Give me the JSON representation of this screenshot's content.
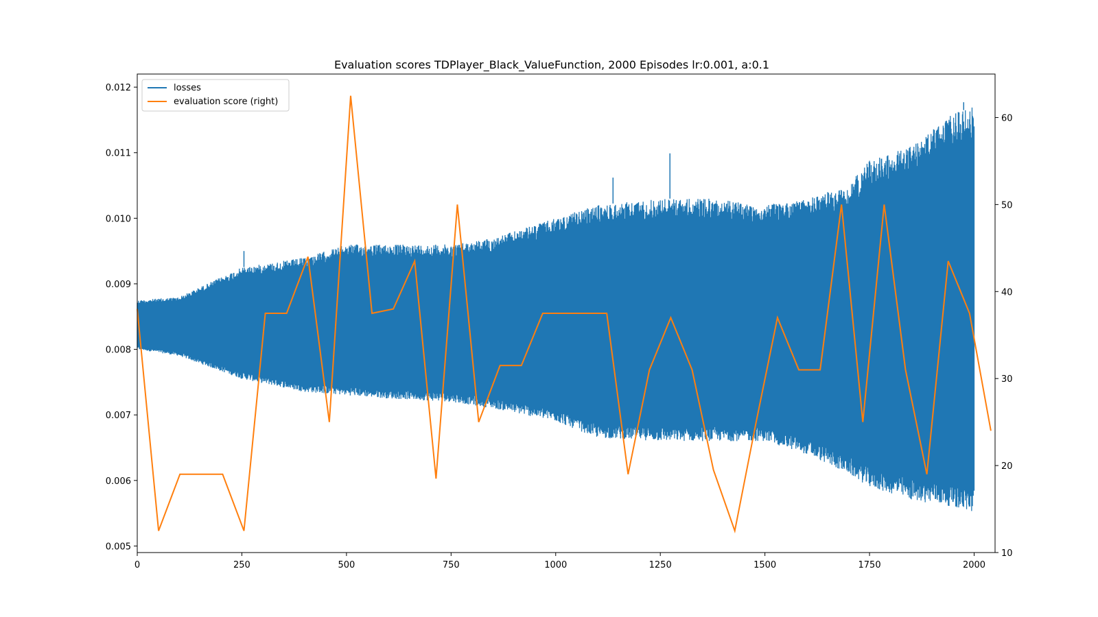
{
  "chart_data": {
    "type": "line",
    "title": "Evaluation scores TDPlayer_Black_ValueFunction, 2000 Episodes lr:0.001, a:0.1",
    "xlabel": "",
    "ylabel": "",
    "xlim": [
      0,
      2050
    ],
    "ylim_left": [
      0.0049,
      0.0122
    ],
    "ylim_right": [
      10,
      65
    ],
    "x_ticks": [
      0,
      250,
      500,
      750,
      1000,
      1250,
      1500,
      1750,
      2000
    ],
    "x_tick_labels": [
      "0",
      "250",
      "500",
      "750",
      "1000",
      "1250",
      "1500",
      "1750",
      "2000"
    ],
    "y_left_ticks": [
      0.005,
      0.006,
      0.007,
      0.008,
      0.009,
      0.01,
      0.011,
      0.012
    ],
    "y_left_tick_labels": [
      "0.005",
      "0.006",
      "0.007",
      "0.008",
      "0.009",
      "0.010",
      "0.011",
      "0.012"
    ],
    "y_right_ticks": [
      10,
      20,
      30,
      40,
      50,
      60
    ],
    "y_right_tick_labels": [
      "10",
      "20",
      "30",
      "40",
      "50",
      "60"
    ],
    "grid": false,
    "legend": {
      "position": "top-left",
      "entries": [
        {
          "label": "losses",
          "color": "#1f77b4"
        },
        {
          "label": "evaluation score (right)",
          "color": "#ff7f0e"
        }
      ]
    },
    "series": [
      {
        "name": "losses",
        "axis": "left",
        "color": "#1f77b4",
        "description_kind": "oscillating band",
        "band": {
          "x": [
            0,
            100,
            250,
            400,
            500,
            600,
            750,
            850,
            1000,
            1100,
            1250,
            1375,
            1500,
            1600,
            1700,
            1750,
            1850,
            1950,
            2000
          ],
          "upper": [
            0.00875,
            0.0088,
            0.00925,
            0.0094,
            0.0096,
            0.0096,
            0.0096,
            0.0097,
            0.01,
            0.0102,
            0.0103,
            0.0103,
            0.0102,
            0.0103,
            0.0105,
            0.0109,
            0.0111,
            0.0116,
            0.0117
          ],
          "lower": [
            0.008,
            0.0079,
            0.00755,
            0.00735,
            0.0073,
            0.00725,
            0.0072,
            0.0071,
            0.0069,
            0.00665,
            0.0066,
            0.0066,
            0.0066,
            0.0064,
            0.0061,
            0.0059,
            0.0057,
            0.0056,
            0.0055
          ]
        },
        "spikes": [
          {
            "x": 255,
            "value": 0.0095
          },
          {
            "x": 1137,
            "value": 0.01062
          },
          {
            "x": 1273,
            "value": 0.01099
          },
          {
            "x": 1975,
            "value": 0.01177
          }
        ]
      },
      {
        "name": "evaluation score (right)",
        "axis": "right",
        "color": "#ff7f0e",
        "x": [
          0,
          51,
          102,
          153,
          204,
          255,
          306,
          357,
          408,
          459,
          510,
          561,
          612,
          663,
          714,
          765,
          816,
          867,
          918,
          969,
          1020,
          1071,
          1122,
          1173,
          1224,
          1275,
          1326,
          1377,
          1428,
          1479,
          1530,
          1581,
          1632,
          1683,
          1734,
          1785,
          1836,
          1887,
          1938,
          1989,
          2040
        ],
        "values": [
          38,
          12.5,
          19,
          19,
          19,
          12.5,
          37.5,
          37.5,
          44,
          25,
          62.5,
          37.5,
          38,
          43.5,
          18.5,
          50,
          25,
          31.5,
          31.5,
          37.5,
          37.5,
          37.5,
          37.5,
          19,
          31,
          37,
          31,
          19.5,
          12.5,
          25,
          37,
          31,
          31,
          50,
          25,
          50,
          31,
          19,
          43.5,
          37.5,
          24
        ]
      }
    ]
  }
}
